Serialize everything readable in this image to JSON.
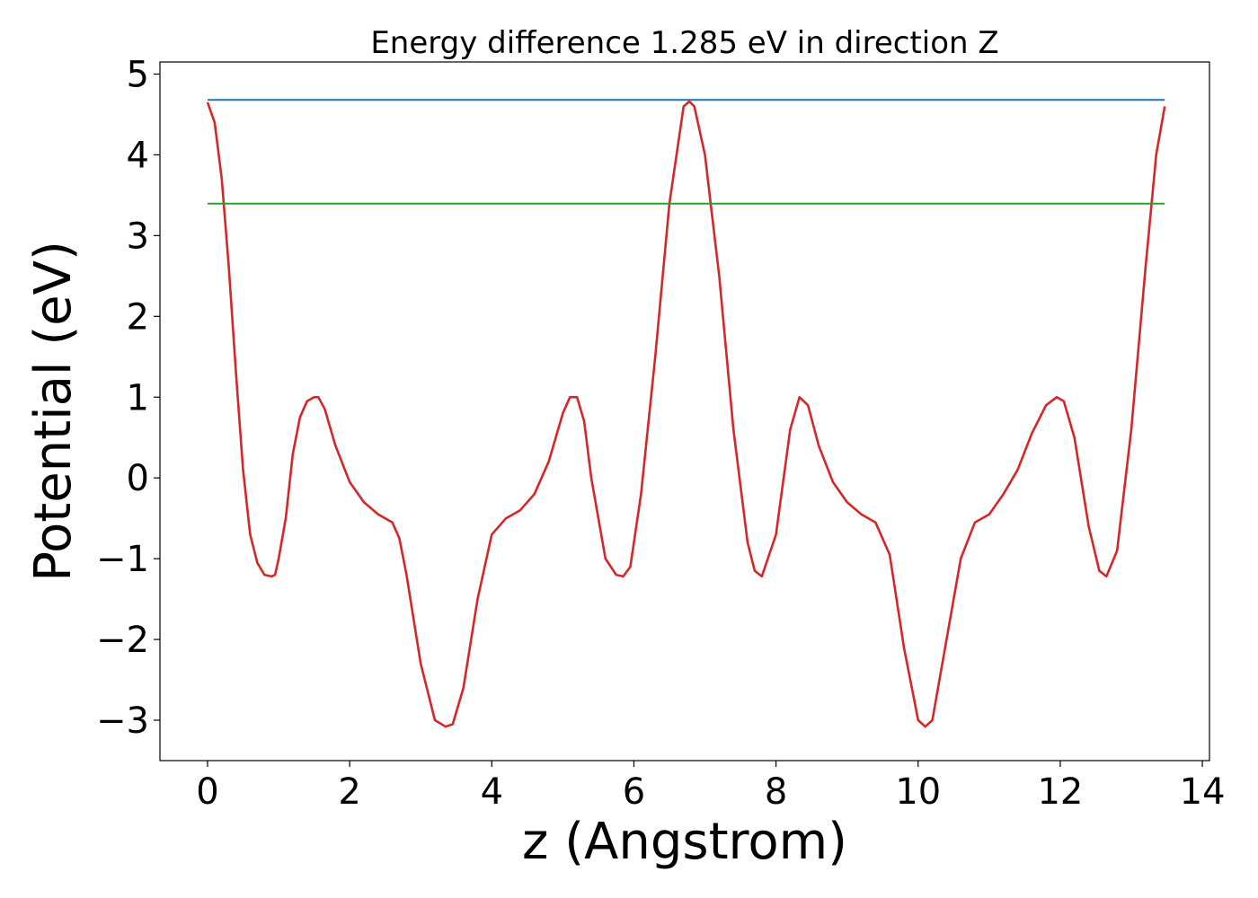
{
  "chart_data": {
    "type": "line",
    "title": "Energy difference 1.285 eV in direction Z",
    "xlabel": "z (Angstrom)",
    "ylabel": "Potential (eV)",
    "xlim": [
      -0.67,
      14.1
    ],
    "ylim": [
      -3.5,
      5.15
    ],
    "xticks": [
      0,
      2,
      4,
      6,
      8,
      10,
      12,
      14
    ],
    "xtick_labels": [
      "0",
      "2",
      "4",
      "6",
      "8",
      "10",
      "12",
      "14"
    ],
    "yticks": [
      -3,
      -2,
      -1,
      0,
      1,
      2,
      3,
      4,
      5
    ],
    "ytick_labels": [
      "−3",
      "−2",
      "−1",
      "0",
      "1",
      "2",
      "3",
      "4",
      "5"
    ],
    "grid": false,
    "series": [
      {
        "color": "#d62728",
        "x": [
          0.0,
          0.1,
          0.2,
          0.3,
          0.4,
          0.5,
          0.6,
          0.7,
          0.8,
          0.9,
          0.95,
          1.0,
          1.1,
          1.2,
          1.3,
          1.4,
          1.5,
          1.56,
          1.65,
          1.8,
          2.0,
          2.2,
          2.4,
          2.5,
          2.6,
          2.7,
          2.8,
          3.0,
          3.2,
          3.35,
          3.45,
          3.6,
          3.8,
          4.0,
          4.2,
          4.4,
          4.6,
          4.8,
          5.0,
          5.1,
          5.2,
          5.3,
          5.4,
          5.6,
          5.75,
          5.85,
          5.95,
          6.1,
          6.3,
          6.5,
          6.7,
          6.78,
          6.85,
          7.0,
          7.2,
          7.4,
          7.6,
          7.7,
          7.8,
          8.0,
          8.2,
          8.33,
          8.45,
          8.6,
          8.8,
          9.0,
          9.2,
          9.3,
          9.4,
          9.6,
          9.8,
          10.0,
          10.1,
          10.2,
          10.4,
          10.6,
          10.8,
          11.0,
          11.2,
          11.4,
          11.6,
          11.8,
          11.95,
          12.05,
          12.2,
          12.4,
          12.55,
          12.65,
          12.8,
          13.0,
          13.2,
          13.35,
          13.47
        ],
        "y": [
          4.65,
          4.4,
          3.7,
          2.6,
          1.3,
          0.1,
          -0.7,
          -1.05,
          -1.2,
          -1.22,
          -1.2,
          -1.0,
          -0.5,
          0.3,
          0.75,
          0.95,
          1.0,
          1.0,
          0.85,
          0.4,
          -0.05,
          -0.3,
          -0.45,
          -0.5,
          -0.55,
          -0.75,
          -1.2,
          -2.3,
          -3.0,
          -3.08,
          -3.05,
          -2.6,
          -1.5,
          -0.7,
          -0.5,
          -0.4,
          -0.2,
          0.2,
          0.8,
          1.0,
          1.0,
          0.7,
          0.0,
          -1.0,
          -1.2,
          -1.22,
          -1.1,
          -0.2,
          1.5,
          3.4,
          4.6,
          4.66,
          4.6,
          4.0,
          2.5,
          0.6,
          -0.8,
          -1.15,
          -1.22,
          -0.7,
          0.6,
          1.0,
          0.9,
          0.4,
          -0.05,
          -0.3,
          -0.45,
          -0.5,
          -0.55,
          -0.95,
          -2.1,
          -3.0,
          -3.08,
          -3.0,
          -2.0,
          -1.0,
          -0.55,
          -0.45,
          -0.2,
          0.1,
          0.55,
          0.9,
          1.0,
          0.95,
          0.5,
          -0.6,
          -1.15,
          -1.22,
          -0.9,
          0.6,
          2.6,
          4.0,
          4.6
        ]
      },
      {
        "color": "#1f77b4",
        "x": [
          0.0,
          13.47
        ],
        "y": [
          4.68,
          4.68
        ]
      },
      {
        "color": "#2ca02c",
        "x": [
          0.0,
          13.47
        ],
        "y": [
          3.395,
          3.395
        ]
      }
    ]
  }
}
